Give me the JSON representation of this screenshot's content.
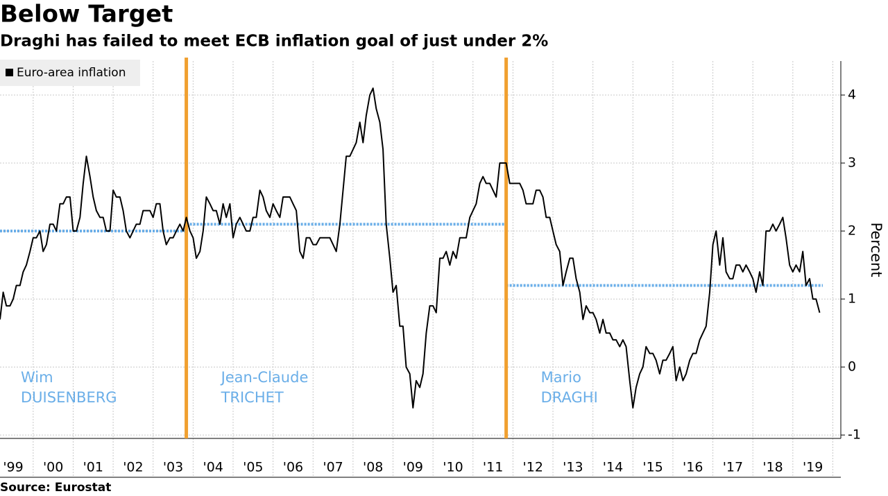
{
  "chart_data": {
    "type": "line",
    "title": "Below Target",
    "subtitle": "Draghi has failed to meet ECB inflation goal of just under 2%",
    "source": "Source: Eurostat",
    "y_label": "Percent",
    "legend": "top-left",
    "grid": true,
    "xlim": [
      1999.17,
      2020.2
    ],
    "ylim": [
      -1.05,
      4.5
    ],
    "yticks": [
      -1,
      0,
      1,
      2,
      3,
      4
    ],
    "xgrid": [
      2000,
      2001,
      2002,
      2003,
      2004,
      2005,
      2006,
      2007,
      2008,
      2009,
      2010,
      2011,
      2012,
      2013,
      2014,
      2015,
      2016,
      2017,
      2018,
      2019,
      2020
    ],
    "xticks": [
      {
        "value": 1999.5,
        "label": "'99"
      },
      {
        "value": 2000.5,
        "label": "'00"
      },
      {
        "value": 2001.5,
        "label": "'01"
      },
      {
        "value": 2002.5,
        "label": "'02"
      },
      {
        "value": 2003.5,
        "label": "'03"
      },
      {
        "value": 2004.5,
        "label": "'04"
      },
      {
        "value": 2005.5,
        "label": "'05"
      },
      {
        "value": 2006.5,
        "label": "'06"
      },
      {
        "value": 2007.5,
        "label": "'07"
      },
      {
        "value": 2008.5,
        "label": "'08"
      },
      {
        "value": 2009.5,
        "label": "'09"
      },
      {
        "value": 2010.5,
        "label": "'10"
      },
      {
        "value": 2011.5,
        "label": "'11"
      },
      {
        "value": 2012.5,
        "label": "'12"
      },
      {
        "value": 2013.5,
        "label": "'13"
      },
      {
        "value": 2014.5,
        "label": "'14"
      },
      {
        "value": 2015.5,
        "label": "'15"
      },
      {
        "value": 2016.5,
        "label": "'16"
      },
      {
        "value": 2017.5,
        "label": "'17"
      },
      {
        "value": 2018.5,
        "label": "'18"
      },
      {
        "value": 2019.5,
        "label": "'19"
      }
    ],
    "periods": [
      {
        "label_lines": [
          "Wim",
          "DUISENBERG"
        ],
        "start": 1999.17,
        "end": 2003.83,
        "average": 2.0
      },
      {
        "label_lines": [
          "Jean-Claude",
          "TRICHET"
        ],
        "start": 2003.83,
        "end": 2011.83,
        "average": 2.1
      },
      {
        "label_lines": [
          "Mario",
          "DRAGHI"
        ],
        "start": 2011.83,
        "end": 2019.75,
        "average": 1.2
      }
    ],
    "period_color": "#f0a030",
    "average_color": "#6aaee8",
    "series": [
      {
        "name": "Euro-area inflation",
        "color": "#000000",
        "x": [
          1999.17,
          1999.25,
          1999.33,
          1999.42,
          1999.5,
          1999.58,
          1999.67,
          1999.75,
          1999.83,
          1999.92,
          2000,
          2000.08,
          2000.17,
          2000.25,
          2000.33,
          2000.42,
          2000.5,
          2000.58,
          2000.67,
          2000.75,
          2000.83,
          2000.92,
          2001,
          2001.08,
          2001.17,
          2001.25,
          2001.33,
          2001.42,
          2001.5,
          2001.58,
          2001.67,
          2001.75,
          2001.83,
          2001.92,
          2002,
          2002.08,
          2002.17,
          2002.25,
          2002.33,
          2002.42,
          2002.5,
          2002.58,
          2002.67,
          2002.75,
          2002.83,
          2002.92,
          2003,
          2003.08,
          2003.17,
          2003.25,
          2003.33,
          2003.42,
          2003.5,
          2003.58,
          2003.67,
          2003.75,
          2003.83,
          2003.92,
          2004,
          2004.08,
          2004.17,
          2004.25,
          2004.33,
          2004.42,
          2004.5,
          2004.58,
          2004.67,
          2004.75,
          2004.83,
          2004.92,
          2005,
          2005.08,
          2005.17,
          2005.25,
          2005.33,
          2005.42,
          2005.5,
          2005.58,
          2005.67,
          2005.75,
          2005.83,
          2005.92,
          2006,
          2006.08,
          2006.17,
          2006.25,
          2006.33,
          2006.42,
          2006.5,
          2006.58,
          2006.67,
          2006.75,
          2006.83,
          2006.92,
          2007,
          2007.08,
          2007.17,
          2007.25,
          2007.33,
          2007.42,
          2007.5,
          2007.58,
          2007.67,
          2007.75,
          2007.83,
          2007.92,
          2008,
          2008.08,
          2008.17,
          2008.25,
          2008.33,
          2008.42,
          2008.5,
          2008.58,
          2008.67,
          2008.75,
          2008.83,
          2008.92,
          2009,
          2009.08,
          2009.17,
          2009.25,
          2009.33,
          2009.42,
          2009.5,
          2009.58,
          2009.67,
          2009.75,
          2009.83,
          2009.92,
          2010,
          2010.08,
          2010.17,
          2010.25,
          2010.33,
          2010.42,
          2010.5,
          2010.58,
          2010.67,
          2010.75,
          2010.83,
          2010.92,
          2011,
          2011.08,
          2011.17,
          2011.25,
          2011.33,
          2011.42,
          2011.5,
          2011.58,
          2011.67,
          2011.75,
          2011.83,
          2011.92,
          2012,
          2012.08,
          2012.17,
          2012.25,
          2012.33,
          2012.42,
          2012.5,
          2012.58,
          2012.67,
          2012.75,
          2012.83,
          2012.92,
          2013,
          2013.08,
          2013.17,
          2013.25,
          2013.33,
          2013.42,
          2013.5,
          2013.58,
          2013.67,
          2013.75,
          2013.83,
          2013.92,
          2014,
          2014.08,
          2014.17,
          2014.25,
          2014.33,
          2014.42,
          2014.5,
          2014.58,
          2014.67,
          2014.75,
          2014.83,
          2014.92,
          2015,
          2015.08,
          2015.17,
          2015.25,
          2015.33,
          2015.42,
          2015.5,
          2015.58,
          2015.67,
          2015.75,
          2015.83,
          2015.92,
          2016,
          2016.08,
          2016.17,
          2016.25,
          2016.33,
          2016.42,
          2016.5,
          2016.58,
          2016.67,
          2016.75,
          2016.83,
          2016.92,
          2017,
          2017.08,
          2017.17,
          2017.25,
          2017.33,
          2017.42,
          2017.5,
          2017.58,
          2017.67,
          2017.75,
          2017.83,
          2017.92,
          2018,
          2018.08,
          2018.17,
          2018.25,
          2018.33,
          2018.42,
          2018.5,
          2018.58,
          2018.67,
          2018.75,
          2018.83,
          2018.92,
          2019,
          2019.08,
          2019.17,
          2019.25,
          2019.33,
          2019.42,
          2019.5,
          2019.58,
          2019.67
        ],
        "values": [
          0.7,
          1.1,
          0.9,
          0.9,
          1.0,
          1.2,
          1.2,
          1.4,
          1.5,
          1.7,
          1.9,
          1.9,
          2.0,
          1.7,
          1.8,
          2.1,
          2.1,
          2.0,
          2.4,
          2.4,
          2.5,
          2.5,
          2.0,
          2.0,
          2.2,
          2.7,
          3.1,
          2.8,
          2.5,
          2.3,
          2.2,
          2.2,
          2.0,
          2.0,
          2.6,
          2.5,
          2.5,
          2.3,
          2.0,
          1.9,
          2.0,
          2.1,
          2.1,
          2.3,
          2.3,
          2.3,
          2.2,
          2.4,
          2.4,
          2.0,
          1.8,
          1.9,
          1.9,
          2.0,
          2.1,
          2.0,
          2.2,
          2.0,
          1.9,
          1.6,
          1.7,
          2.0,
          2.5,
          2.4,
          2.3,
          2.3,
          2.1,
          2.4,
          2.2,
          2.4,
          1.9,
          2.1,
          2.2,
          2.1,
          2.0,
          2.0,
          2.2,
          2.2,
          2.6,
          2.5,
          2.3,
          2.2,
          2.4,
          2.3,
          2.2,
          2.5,
          2.5,
          2.5,
          2.4,
          2.3,
          1.7,
          1.6,
          1.9,
          1.9,
          1.8,
          1.8,
          1.9,
          1.9,
          1.9,
          1.9,
          1.8,
          1.7,
          2.1,
          2.6,
          3.1,
          3.1,
          3.2,
          3.3,
          3.6,
          3.3,
          3.7,
          4.0,
          4.1,
          3.8,
          3.6,
          3.2,
          2.1,
          1.6,
          1.1,
          1.2,
          0.6,
          0.6,
          0.0,
          -0.1,
          -0.6,
          -0.2,
          -0.3,
          -0.1,
          0.5,
          0.9,
          0.9,
          0.8,
          1.6,
          1.6,
          1.7,
          1.5,
          1.7,
          1.6,
          1.9,
          1.9,
          1.9,
          2.2,
          2.3,
          2.4,
          2.7,
          2.8,
          2.7,
          2.7,
          2.6,
          2.5,
          3.0,
          3.0,
          3.0,
          2.7,
          2.7,
          2.7,
          2.7,
          2.6,
          2.4,
          2.4,
          2.4,
          2.6,
          2.6,
          2.5,
          2.2,
          2.2,
          2.0,
          1.8,
          1.7,
          1.2,
          1.4,
          1.6,
          1.6,
          1.3,
          1.1,
          0.7,
          0.9,
          0.8,
          0.8,
          0.7,
          0.5,
          0.7,
          0.5,
          0.5,
          0.4,
          0.4,
          0.3,
          0.4,
          0.3,
          -0.2,
          -0.6,
          -0.3,
          -0.1,
          0.0,
          0.3,
          0.2,
          0.2,
          0.1,
          -0.1,
          0.1,
          0.1,
          0.2,
          0.3,
          -0.2,
          0.0,
          -0.2,
          -0.1,
          0.1,
          0.2,
          0.2,
          0.4,
          0.5,
          0.6,
          1.1,
          1.8,
          2.0,
          1.5,
          1.9,
          1.4,
          1.3,
          1.3,
          1.5,
          1.5,
          1.4,
          1.5,
          1.4,
          1.3,
          1.1,
          1.4,
          1.2,
          2.0,
          2.0,
          2.1,
          2.0,
          2.1,
          2.2,
          1.9,
          1.5,
          1.4,
          1.5,
          1.4,
          1.7,
          1.2,
          1.3,
          1.0,
          1.0,
          0.8
        ]
      }
    ]
  }
}
